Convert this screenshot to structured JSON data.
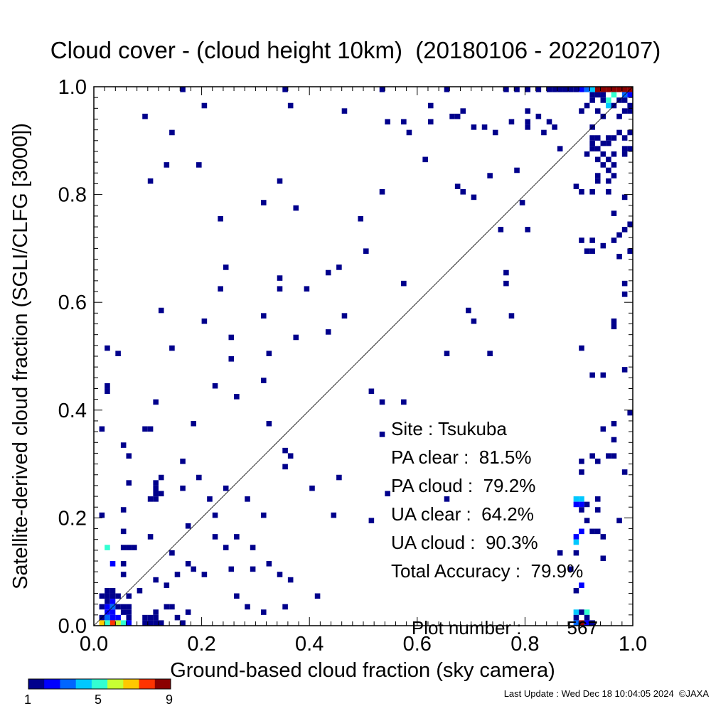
{
  "title": "Cloud cover - (cloud height 10km)  (20180106 - 20220107)",
  "footer": "Last Update : Wed Dec 18 10:04:05 2024  ©JAXA",
  "stats": {
    "site": "Site : Tsukuba",
    "pa_clear": "PA clear :  81.5%",
    "pa_cloud": "PA cloud :  79.2%",
    "ua_clear": "UA clear :  64.2%",
    "ua_cloud": "UA cloud :  90.3%",
    "total_accuracy": "Total Accuracy :  79.9%",
    "plot_number_label": "Plot number :",
    "plot_number_value": "567"
  },
  "colorbar": {
    "min_label": "1",
    "mid_label": "5",
    "max_label": "9",
    "colors": [
      "#00008c",
      "#0000ff",
      "#0066ff",
      "#00c8ff",
      "#33ffd2",
      "#c8ff33",
      "#ffc800",
      "#ff3300",
      "#8c0000"
    ]
  },
  "chart_data": {
    "type": "heatmap",
    "title": "Cloud cover - (cloud height 10km)  (20180106 - 20220107)",
    "xlabel": "Ground-based cloud fraction (sky camera)",
    "ylabel": "Satellite-derived cloud fraction (SGLI/CLFG [3000])",
    "xlim": [
      0,
      1
    ],
    "ylim": [
      0,
      1
    ],
    "xticks": [
      "0.0",
      "0.2",
      "0.4",
      "0.6",
      "0.8",
      "1.0"
    ],
    "yticks": [
      "0.0",
      "0.2",
      "0.4",
      "0.6",
      "0.8",
      "1.0"
    ],
    "bin_size": 0.01,
    "reference_line": "1:1",
    "count_range": [
      1,
      9
    ],
    "cells": [
      [
        0.16,
        0.99,
        1
      ],
      [
        0.35,
        0.99,
        1
      ],
      [
        0.53,
        0.99,
        1
      ],
      [
        0.65,
        0.99,
        1
      ],
      [
        0.76,
        0.99,
        1
      ],
      [
        0.78,
        0.99,
        1
      ],
      [
        0.8,
        0.99,
        1
      ],
      [
        0.82,
        0.99,
        1
      ],
      [
        0.84,
        0.99,
        1
      ],
      [
        0.85,
        0.99,
        1
      ],
      [
        0.86,
        0.99,
        1
      ],
      [
        0.87,
        0.99,
        1
      ],
      [
        0.88,
        0.99,
        1
      ],
      [
        0.89,
        0.99,
        1
      ],
      [
        0.9,
        0.99,
        2
      ],
      [
        0.91,
        0.99,
        3
      ],
      [
        0.92,
        0.99,
        4
      ],
      [
        0.93,
        0.99,
        9
      ],
      [
        0.94,
        0.99,
        9
      ],
      [
        0.95,
        0.99,
        9
      ],
      [
        0.96,
        0.99,
        9
      ],
      [
        0.97,
        0.99,
        9
      ],
      [
        0.98,
        0.99,
        9
      ],
      [
        0.99,
        0.99,
        9
      ],
      [
        0.92,
        0.98,
        1
      ],
      [
        0.93,
        0.98,
        1
      ],
      [
        0.94,
        0.98,
        1
      ],
      [
        0.96,
        0.98,
        5
      ],
      [
        0.98,
        0.98,
        3
      ],
      [
        0.99,
        0.98,
        2
      ],
      [
        0.92,
        0.97,
        1
      ],
      [
        0.94,
        0.97,
        1
      ],
      [
        0.95,
        0.97,
        5
      ],
      [
        0.97,
        0.97,
        1
      ],
      [
        0.98,
        0.97,
        1
      ],
      [
        0.2,
        0.96,
        1
      ],
      [
        0.36,
        0.96,
        1
      ],
      [
        0.62,
        0.96,
        1
      ],
      [
        0.91,
        0.96,
        1
      ],
      [
        0.95,
        0.96,
        4
      ],
      [
        0.96,
        0.96,
        1
      ],
      [
        0.99,
        0.96,
        1
      ],
      [
        0.46,
        0.95,
        1
      ],
      [
        0.68,
        0.95,
        1
      ],
      [
        0.8,
        0.95,
        1
      ],
      [
        0.9,
        0.95,
        1
      ],
      [
        0.93,
        0.95,
        1
      ],
      [
        0.98,
        0.95,
        1
      ],
      [
        0.99,
        0.95,
        1
      ],
      [
        0.09,
        0.94,
        1
      ],
      [
        0.66,
        0.94,
        1
      ],
      [
        0.67,
        0.94,
        1
      ],
      [
        0.82,
        0.94,
        1
      ],
      [
        0.94,
        0.94,
        1
      ],
      [
        0.97,
        0.94,
        1
      ],
      [
        0.54,
        0.93,
        1
      ],
      [
        0.57,
        0.93,
        1
      ],
      [
        0.62,
        0.93,
        1
      ],
      [
        0.77,
        0.93,
        1
      ],
      [
        0.8,
        0.93,
        1
      ],
      [
        0.84,
        0.93,
        1
      ],
      [
        0.7,
        0.92,
        1
      ],
      [
        0.72,
        0.92,
        1
      ],
      [
        0.8,
        0.92,
        1
      ],
      [
        0.85,
        0.92,
        1
      ],
      [
        0.92,
        0.92,
        1
      ],
      [
        0.14,
        0.91,
        1
      ],
      [
        0.58,
        0.91,
        1
      ],
      [
        0.74,
        0.91,
        1
      ],
      [
        0.83,
        0.91,
        1
      ],
      [
        0.97,
        0.91,
        1
      ],
      [
        0.99,
        0.91,
        1
      ],
      [
        0.92,
        0.9,
        1
      ],
      [
        0.93,
        0.9,
        1
      ],
      [
        0.95,
        0.9,
        1
      ],
      [
        0.96,
        0.9,
        1
      ],
      [
        0.98,
        0.9,
        1
      ],
      [
        0.92,
        0.89,
        1
      ],
      [
        0.94,
        0.89,
        1
      ],
      [
        0.95,
        0.89,
        1
      ],
      [
        0.86,
        0.88,
        1
      ],
      [
        0.92,
        0.88,
        1
      ],
      [
        0.93,
        0.88,
        1
      ],
      [
        0.98,
        0.88,
        1
      ],
      [
        0.99,
        0.88,
        1
      ],
      [
        0.91,
        0.87,
        1
      ],
      [
        0.94,
        0.87,
        1
      ],
      [
        0.96,
        0.87,
        1
      ],
      [
        0.98,
        0.87,
        1
      ],
      [
        0.61,
        0.86,
        1
      ],
      [
        0.93,
        0.86,
        1
      ],
      [
        0.95,
        0.86,
        1
      ],
      [
        0.13,
        0.85,
        1
      ],
      [
        0.19,
        0.85,
        1
      ],
      [
        0.94,
        0.85,
        1
      ],
      [
        0.96,
        0.85,
        1
      ],
      [
        0.78,
        0.84,
        1
      ],
      [
        0.95,
        0.84,
        1
      ],
      [
        0.73,
        0.83,
        1
      ],
      [
        0.93,
        0.83,
        1
      ],
      [
        0.96,
        0.83,
        1
      ],
      [
        0.1,
        0.82,
        1
      ],
      [
        0.34,
        0.82,
        1
      ],
      [
        0.93,
        0.82,
        1
      ],
      [
        0.95,
        0.82,
        1
      ],
      [
        0.67,
        0.81,
        1
      ],
      [
        0.89,
        0.81,
        1
      ],
      [
        0.68,
        0.8,
        1
      ],
      [
        0.53,
        0.8,
        1
      ],
      [
        0.9,
        0.8,
        1
      ],
      [
        0.92,
        0.8,
        1
      ],
      [
        0.95,
        0.8,
        1
      ],
      [
        0.7,
        0.79,
        1
      ],
      [
        0.98,
        0.79,
        1
      ],
      [
        0.31,
        0.78,
        1
      ],
      [
        0.79,
        0.78,
        1
      ],
      [
        0.37,
        0.77,
        1
      ],
      [
        0.96,
        0.76,
        1
      ],
      [
        0.23,
        0.75,
        1
      ],
      [
        0.49,
        0.75,
        1
      ],
      [
        0.99,
        0.74,
        1
      ],
      [
        0.75,
        0.73,
        1
      ],
      [
        0.8,
        0.73,
        1
      ],
      [
        0.98,
        0.73,
        1
      ],
      [
        0.97,
        0.72,
        1
      ],
      [
        0.9,
        0.71,
        1
      ],
      [
        0.92,
        0.71,
        1
      ],
      [
        0.96,
        0.71,
        1
      ],
      [
        0.94,
        0.7,
        1
      ],
      [
        0.5,
        0.69,
        1
      ],
      [
        0.91,
        0.69,
        1
      ],
      [
        0.92,
        0.69,
        1
      ],
      [
        0.99,
        0.69,
        1
      ],
      [
        0.97,
        0.68,
        1
      ],
      [
        0.24,
        0.66,
        1
      ],
      [
        0.45,
        0.66,
        1
      ],
      [
        0.43,
        0.65,
        1
      ],
      [
        0.76,
        0.65,
        1
      ],
      [
        0.34,
        0.64,
        1
      ],
      [
        0.76,
        0.63,
        1
      ],
      [
        0.57,
        0.63,
        1
      ],
      [
        0.98,
        0.63,
        1
      ],
      [
        0.23,
        0.62,
        1
      ],
      [
        0.34,
        0.62,
        1
      ],
      [
        0.39,
        0.62,
        1
      ],
      [
        0.98,
        0.61,
        1
      ],
      [
        0.12,
        0.58,
        1
      ],
      [
        0.69,
        0.58,
        1
      ],
      [
        0.31,
        0.57,
        1
      ],
      [
        0.46,
        0.57,
        1
      ],
      [
        0.77,
        0.57,
        1
      ],
      [
        0.2,
        0.56,
        1
      ],
      [
        0.7,
        0.56,
        1
      ],
      [
        0.96,
        0.56,
        1
      ],
      [
        0.43,
        0.54,
        1
      ],
      [
        0.96,
        0.55,
        1
      ],
      [
        0.25,
        0.53,
        1
      ],
      [
        0.37,
        0.53,
        1
      ],
      [
        0.02,
        0.51,
        1
      ],
      [
        0.14,
        0.51,
        1
      ],
      [
        0.9,
        0.51,
        1
      ],
      [
        0.04,
        0.5,
        1
      ],
      [
        0.32,
        0.5,
        1
      ],
      [
        0.65,
        0.5,
        1
      ],
      [
        0.73,
        0.5,
        1
      ],
      [
        0.25,
        0.49,
        1
      ],
      [
        0.98,
        0.47,
        1
      ],
      [
        0.92,
        0.46,
        1
      ],
      [
        0.94,
        0.46,
        1
      ],
      [
        0.31,
        0.45,
        1
      ],
      [
        0.02,
        0.44,
        1
      ],
      [
        0.22,
        0.44,
        1
      ],
      [
        0.02,
        0.43,
        1
      ],
      [
        0.51,
        0.43,
        1
      ],
      [
        0.26,
        0.42,
        1
      ],
      [
        0.11,
        0.41,
        1
      ],
      [
        0.53,
        0.41,
        1
      ],
      [
        0.57,
        0.41,
        1
      ],
      [
        0.99,
        0.39,
        1
      ],
      [
        0.18,
        0.37,
        1
      ],
      [
        0.32,
        0.37,
        1
      ],
      [
        0.96,
        0.37,
        1
      ],
      [
        0.01,
        0.36,
        1
      ],
      [
        0.09,
        0.36,
        1
      ],
      [
        0.1,
        0.36,
        1
      ],
      [
        0.94,
        0.36,
        1
      ],
      [
        0.53,
        0.35,
        1
      ],
      [
        0.05,
        0.33,
        1
      ],
      [
        0.96,
        0.34,
        1
      ],
      [
        0.35,
        0.32,
        1
      ],
      [
        0.06,
        0.31,
        1
      ],
      [
        0.92,
        0.31,
        1
      ],
      [
        0.95,
        0.31,
        1
      ],
      [
        0.96,
        0.31,
        1
      ],
      [
        0.36,
        0.31,
        1
      ],
      [
        0.16,
        0.3,
        1
      ],
      [
        0.9,
        0.3,
        1
      ],
      [
        0.93,
        0.3,
        1
      ],
      [
        0.35,
        0.29,
        1
      ],
      [
        0.9,
        0.28,
        1
      ],
      [
        0.12,
        0.27,
        1
      ],
      [
        0.19,
        0.27,
        1
      ],
      [
        0.45,
        0.27,
        1
      ],
      [
        0.98,
        0.28,
        1
      ],
      [
        0.06,
        0.26,
        1
      ],
      [
        0.11,
        0.26,
        1
      ],
      [
        0.11,
        0.25,
        1
      ],
      [
        0.16,
        0.25,
        1
      ],
      [
        0.24,
        0.25,
        1
      ],
      [
        0.4,
        0.25,
        1
      ],
      [
        0.11,
        0.24,
        1
      ],
      [
        0.12,
        0.24,
        1
      ],
      [
        0.21,
        0.23,
        1
      ],
      [
        0.54,
        0.24,
        1
      ],
      [
        0.89,
        0.23,
        4
      ],
      [
        0.9,
        0.23,
        4
      ],
      [
        0.93,
        0.23,
        1
      ],
      [
        0.1,
        0.23,
        1
      ],
      [
        0.11,
        0.23,
        1
      ],
      [
        0.28,
        0.23,
        1
      ],
      [
        0.65,
        0.23,
        1
      ],
      [
        0.89,
        0.22,
        2
      ],
      [
        0.9,
        0.22,
        2
      ],
      [
        0.05,
        0.21,
        1
      ],
      [
        0.91,
        0.22,
        1
      ],
      [
        0.93,
        0.21,
        1
      ],
      [
        0.01,
        0.2,
        1
      ],
      [
        0.22,
        0.2,
        1
      ],
      [
        0.31,
        0.2,
        1
      ],
      [
        0.44,
        0.2,
        1
      ],
      [
        0.9,
        0.21,
        1
      ],
      [
        0.51,
        0.19,
        1
      ],
      [
        0.91,
        0.19,
        1
      ],
      [
        0.17,
        0.18,
        1
      ],
      [
        0.97,
        0.19,
        1
      ],
      [
        0.92,
        0.17,
        1
      ],
      [
        0.05,
        0.17,
        1
      ],
      [
        0.93,
        0.17,
        1
      ],
      [
        0.9,
        0.17,
        2
      ],
      [
        0.1,
        0.16,
        1
      ],
      [
        0.22,
        0.16,
        1
      ],
      [
        0.26,
        0.16,
        1
      ],
      [
        0.94,
        0.16,
        1
      ],
      [
        0.89,
        0.16,
        2
      ],
      [
        0.02,
        0.14,
        5
      ],
      [
        0.05,
        0.14,
        1
      ],
      [
        0.06,
        0.14,
        1
      ],
      [
        0.07,
        0.14,
        1
      ],
      [
        0.89,
        0.15,
        4
      ],
      [
        0.24,
        0.14,
        1
      ],
      [
        0.29,
        0.14,
        1
      ],
      [
        0.14,
        0.13,
        1
      ],
      [
        0.89,
        0.13,
        1
      ],
      [
        0.94,
        0.12,
        1
      ],
      [
        0.03,
        0.11,
        2
      ],
      [
        0.05,
        0.11,
        1
      ],
      [
        0.17,
        0.11,
        1
      ],
      [
        0.32,
        0.11,
        1
      ],
      [
        0.86,
        0.13,
        1
      ],
      [
        0.18,
        0.1,
        1
      ],
      [
        0.25,
        0.1,
        1
      ],
      [
        0.29,
        0.1,
        1
      ],
      [
        0.34,
        0.09,
        1
      ],
      [
        0.88,
        0.1,
        1
      ],
      [
        0.15,
        0.09,
        1
      ],
      [
        0.2,
        0.09,
        1
      ],
      [
        0.05,
        0.09,
        1
      ],
      [
        0.36,
        0.08,
        1
      ],
      [
        0.11,
        0.08,
        1
      ],
      [
        0.13,
        0.07,
        1
      ],
      [
        0.9,
        0.07,
        2
      ],
      [
        0.02,
        0.06,
        1
      ],
      [
        0.03,
        0.06,
        1
      ],
      [
        0.06,
        0.05,
        1
      ],
      [
        0.08,
        0.06,
        1
      ],
      [
        0.01,
        0.05,
        1
      ],
      [
        0.02,
        0.05,
        1
      ],
      [
        0.03,
        0.05,
        1
      ],
      [
        0.04,
        0.05,
        1
      ],
      [
        0.41,
        0.05,
        1
      ],
      [
        0.89,
        0.06,
        1
      ],
      [
        0.02,
        0.04,
        1
      ],
      [
        0.03,
        0.04,
        2
      ],
      [
        0.26,
        0.05,
        1
      ],
      [
        0.01,
        0.03,
        1
      ],
      [
        0.02,
        0.03,
        2
      ],
      [
        0.03,
        0.03,
        3
      ],
      [
        0.04,
        0.03,
        1
      ],
      [
        0.05,
        0.03,
        1
      ],
      [
        0.06,
        0.03,
        1
      ],
      [
        0.13,
        0.03,
        1
      ],
      [
        0.14,
        0.03,
        1
      ],
      [
        0.28,
        0.03,
        1
      ],
      [
        0.35,
        0.03,
        1
      ],
      [
        0.02,
        0.02,
        2
      ],
      [
        0.03,
        0.02,
        2
      ],
      [
        0.05,
        0.02,
        1
      ],
      [
        0.06,
        0.02,
        1
      ],
      [
        0.11,
        0.02,
        1
      ],
      [
        0.17,
        0.02,
        1
      ],
      [
        0.31,
        0.02,
        1
      ],
      [
        0.89,
        0.02,
        4
      ],
      [
        0.9,
        0.02,
        1
      ],
      [
        0.91,
        0.02,
        5
      ],
      [
        0.01,
        0.01,
        1
      ],
      [
        0.02,
        0.01,
        3
      ],
      [
        0.03,
        0.01,
        2
      ],
      [
        0.04,
        0.01,
        2
      ],
      [
        0.06,
        0.01,
        1
      ],
      [
        0.09,
        0.01,
        1
      ],
      [
        0.1,
        0.01,
        1
      ],
      [
        0.11,
        0.01,
        1
      ],
      [
        0.15,
        0.01,
        1
      ],
      [
        0.89,
        0.01,
        1
      ],
      [
        0.91,
        0.01,
        1
      ],
      [
        0.01,
        0.0,
        7
      ],
      [
        0.02,
        0.0,
        5
      ],
      [
        0.03,
        0.0,
        8
      ],
      [
        0.04,
        0.0,
        6
      ],
      [
        0.05,
        0.0,
        5
      ],
      [
        0.06,
        0.0,
        2
      ],
      [
        0.09,
        0.0,
        1
      ],
      [
        0.1,
        0.0,
        1
      ],
      [
        0.11,
        0.0,
        1
      ],
      [
        0.12,
        0.0,
        1
      ],
      [
        0.16,
        0.0,
        1
      ],
      [
        0.89,
        0.0,
        3
      ],
      [
        0.9,
        0.0,
        9
      ],
      [
        0.91,
        0.0,
        2
      ],
      [
        0.92,
        0.0,
        1
      ]
    ]
  }
}
